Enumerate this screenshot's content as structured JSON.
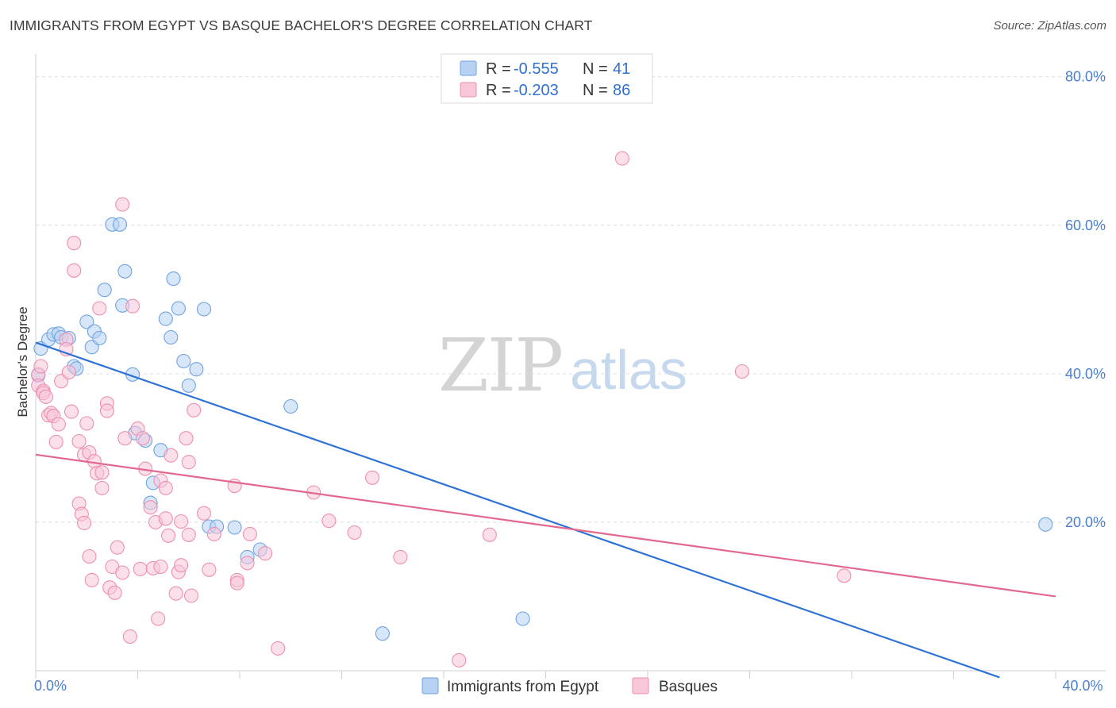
{
  "title": "IMMIGRANTS FROM EGYPT VS BASQUE BACHELOR'S DEGREE CORRELATION CHART",
  "source": "Source: ZipAtlas.com",
  "watermark": {
    "zip": "ZIP",
    "atlas": "atlas"
  },
  "legend": {
    "rows": [
      {
        "r_label": "R =",
        "r_value": "-0.555",
        "n_label": "N =",
        "n_value": "41",
        "color": "#9dc1ee"
      },
      {
        "r_label": "R =",
        "r_value": "-0.203",
        "n_label": "N =",
        "n_value": "86",
        "color": "#f4a9c2"
      }
    ]
  },
  "bottom_legend": [
    {
      "label": "Immigrants from Egypt",
      "color": "#9dc1ee"
    },
    {
      "label": "Basques",
      "color": "#f4a9c2"
    }
  ],
  "chart_data": {
    "type": "scatter",
    "title": "IMMIGRANTS FROM EGYPT VS BASQUE BACHELOR'S DEGREE CORRELATION CHART",
    "xlabel": "",
    "ylabel": "Bachelor's Degree",
    "xlim": [
      0,
      40
    ],
    "ylim": [
      0,
      82
    ],
    "x_tick_labels": [
      {
        "value": 0,
        "label": "0.0%"
      },
      {
        "value": 40,
        "label": "40.0%"
      }
    ],
    "y_tick_labels": [
      {
        "value": 20,
        "label": "20.0%"
      },
      {
        "value": 40,
        "label": "40.0%"
      },
      {
        "value": 60,
        "label": "60.0%"
      },
      {
        "value": 80,
        "label": "80.0%"
      }
    ],
    "grid": true,
    "legend_position": "top-center",
    "series": [
      {
        "name": "Immigrants from Egypt",
        "color": "#6fa3e3",
        "fill": "#b7d1f3",
        "trend": {
          "x": [
            0,
            37.8
          ],
          "y": [
            44.2,
            -0.9
          ],
          "color": "#2f72d5"
        },
        "points": [
          [
            0.2,
            43.4
          ],
          [
            0.5,
            44.6
          ],
          [
            0.7,
            45.3
          ],
          [
            0.9,
            45.4
          ],
          [
            1.0,
            44.9
          ],
          [
            1.3,
            44.8
          ],
          [
            1.5,
            41.0
          ],
          [
            1.6,
            40.7
          ],
          [
            2.0,
            47.0
          ],
          [
            2.2,
            43.6
          ],
          [
            2.3,
            45.7
          ],
          [
            2.5,
            44.8
          ],
          [
            2.7,
            51.3
          ],
          [
            3.0,
            60.1
          ],
          [
            3.3,
            60.1
          ],
          [
            3.4,
            49.2
          ],
          [
            3.5,
            53.8
          ],
          [
            3.8,
            39.9
          ],
          [
            3.9,
            32.0
          ],
          [
            4.3,
            31.0
          ],
          [
            4.5,
            22.6
          ],
          [
            4.6,
            25.3
          ],
          [
            4.9,
            29.7
          ],
          [
            5.1,
            47.4
          ],
          [
            5.3,
            44.9
          ],
          [
            5.4,
            52.8
          ],
          [
            5.6,
            48.8
          ],
          [
            5.8,
            41.7
          ],
          [
            6.0,
            38.4
          ],
          [
            6.3,
            40.6
          ],
          [
            6.6,
            48.7
          ],
          [
            6.8,
            19.4
          ],
          [
            7.1,
            19.4
          ],
          [
            7.8,
            19.3
          ],
          [
            8.3,
            15.3
          ],
          [
            8.8,
            16.3
          ],
          [
            10.0,
            35.6
          ],
          [
            13.6,
            5.0
          ],
          [
            19.1,
            7.0
          ],
          [
            39.6,
            19.7
          ],
          [
            0.1,
            39.8
          ]
        ]
      },
      {
        "name": "Basques",
        "color": "#ee8fb1",
        "fill": "#f8c7d8",
        "trend": {
          "x": [
            0,
            40
          ],
          "y": [
            29.1,
            10.0
          ],
          "color": "#e2688f"
        },
        "points": [
          [
            0.1,
            39.9
          ],
          [
            0.1,
            38.4
          ],
          [
            0.2,
            41.0
          ],
          [
            0.3,
            37.7
          ],
          [
            0.3,
            37.4
          ],
          [
            0.4,
            36.9
          ],
          [
            0.5,
            34.4
          ],
          [
            0.6,
            34.7
          ],
          [
            0.7,
            34.3
          ],
          [
            0.8,
            30.8
          ],
          [
            0.9,
            33.2
          ],
          [
            1.0,
            39.0
          ],
          [
            1.2,
            44.6
          ],
          [
            1.3,
            40.2
          ],
          [
            1.4,
            34.9
          ],
          [
            1.5,
            57.6
          ],
          [
            1.5,
            53.9
          ],
          [
            1.7,
            30.9
          ],
          [
            1.7,
            22.5
          ],
          [
            1.8,
            21.1
          ],
          [
            1.9,
            29.1
          ],
          [
            1.9,
            19.9
          ],
          [
            2.0,
            33.3
          ],
          [
            2.1,
            29.4
          ],
          [
            2.1,
            15.4
          ],
          [
            2.2,
            12.2
          ],
          [
            2.3,
            28.2
          ],
          [
            2.4,
            26.6
          ],
          [
            2.5,
            48.8
          ],
          [
            2.6,
            24.6
          ],
          [
            2.6,
            26.7
          ],
          [
            2.8,
            36.0
          ],
          [
            2.8,
            35.0
          ],
          [
            2.9,
            11.2
          ],
          [
            3.0,
            14.0
          ],
          [
            3.1,
            10.5
          ],
          [
            3.2,
            16.6
          ],
          [
            3.4,
            62.8
          ],
          [
            3.4,
            13.2
          ],
          [
            3.5,
            31.3
          ],
          [
            3.7,
            4.6
          ],
          [
            3.8,
            49.1
          ],
          [
            4.0,
            32.6
          ],
          [
            4.1,
            13.7
          ],
          [
            4.2,
            31.3
          ],
          [
            4.3,
            27.2
          ],
          [
            4.5,
            22.0
          ],
          [
            4.6,
            13.8
          ],
          [
            4.7,
            20.0
          ],
          [
            4.8,
            7.0
          ],
          [
            4.9,
            25.6
          ],
          [
            4.9,
            14.0
          ],
          [
            5.1,
            24.6
          ],
          [
            5.1,
            20.5
          ],
          [
            5.2,
            18.2
          ],
          [
            5.3,
            29.0
          ],
          [
            5.5,
            10.4
          ],
          [
            5.6,
            13.3
          ],
          [
            5.7,
            20.1
          ],
          [
            5.7,
            14.2
          ],
          [
            5.9,
            31.3
          ],
          [
            6.0,
            28.1
          ],
          [
            6.0,
            18.3
          ],
          [
            6.1,
            10.1
          ],
          [
            6.2,
            35.1
          ],
          [
            6.6,
            21.2
          ],
          [
            6.8,
            13.6
          ],
          [
            7.0,
            18.4
          ],
          [
            7.8,
            24.9
          ],
          [
            7.9,
            12.2
          ],
          [
            7.9,
            11.8
          ],
          [
            8.3,
            14.5
          ],
          [
            8.4,
            18.4
          ],
          [
            9.0,
            15.8
          ],
          [
            9.5,
            3.0
          ],
          [
            10.9,
            24.0
          ],
          [
            11.5,
            20.2
          ],
          [
            12.5,
            18.6
          ],
          [
            13.2,
            26.0
          ],
          [
            14.3,
            15.3
          ],
          [
            16.6,
            1.4
          ],
          [
            17.8,
            18.3
          ],
          [
            23.0,
            69.0
          ],
          [
            27.7,
            40.3
          ],
          [
            31.7,
            12.8
          ],
          [
            1.2,
            43.3
          ]
        ]
      }
    ]
  }
}
